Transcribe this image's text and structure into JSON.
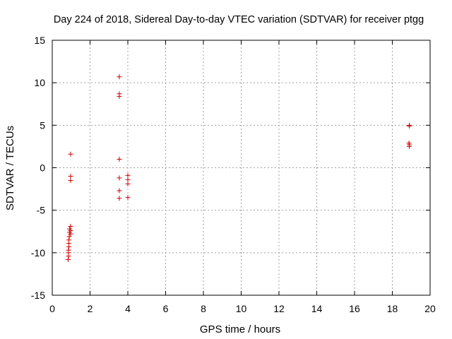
{
  "chart_data": {
    "type": "scatter",
    "title": "Day 224 of 2018, Sidereal Day-to-day VTEC variation (SDTVAR) for receiver ptgg",
    "xlabel": "GPS time / hours",
    "ylabel": "SDTVAR / TECUs",
    "xlim": [
      0,
      20
    ],
    "ylim": [
      -15,
      15
    ],
    "xticks": [
      "0",
      "2",
      "4",
      "6",
      "8",
      "10",
      "12",
      "14",
      "16",
      "18",
      "20"
    ],
    "yticks": [
      "15",
      "10",
      "5",
      "0",
      "-5",
      "-10",
      "-15"
    ],
    "grid": true,
    "marker": "+",
    "series": [
      {
        "name": "ptgg",
        "color": "#cc0000",
        "points": [
          [
            0.97,
            1.6
          ],
          [
            0.97,
            -1.0
          ],
          [
            0.97,
            -1.5
          ],
          [
            0.97,
            -6.9
          ],
          [
            0.92,
            -7.2
          ],
          [
            0.97,
            -7.4
          ],
          [
            0.92,
            -7.6
          ],
          [
            0.97,
            -7.8
          ],
          [
            0.9,
            -8.1
          ],
          [
            0.88,
            -8.5
          ],
          [
            0.88,
            -8.9
          ],
          [
            0.88,
            -9.3
          ],
          [
            0.86,
            -9.7
          ],
          [
            0.86,
            -10.0
          ],
          [
            0.86,
            -10.4
          ],
          [
            0.84,
            -10.8
          ],
          [
            3.55,
            10.7
          ],
          [
            3.55,
            8.7
          ],
          [
            3.55,
            8.4
          ],
          [
            3.55,
            1.0
          ],
          [
            3.55,
            -1.2
          ],
          [
            3.55,
            -2.7
          ],
          [
            3.55,
            -3.6
          ],
          [
            4.0,
            -0.9
          ],
          [
            4.0,
            -1.4
          ],
          [
            4.0,
            -1.9
          ],
          [
            4.0,
            -3.5
          ],
          [
            18.9,
            5.0
          ],
          [
            18.9,
            4.9
          ],
          [
            18.88,
            2.9
          ],
          [
            18.9,
            2.7
          ],
          [
            18.9,
            2.5
          ]
        ]
      }
    ]
  }
}
